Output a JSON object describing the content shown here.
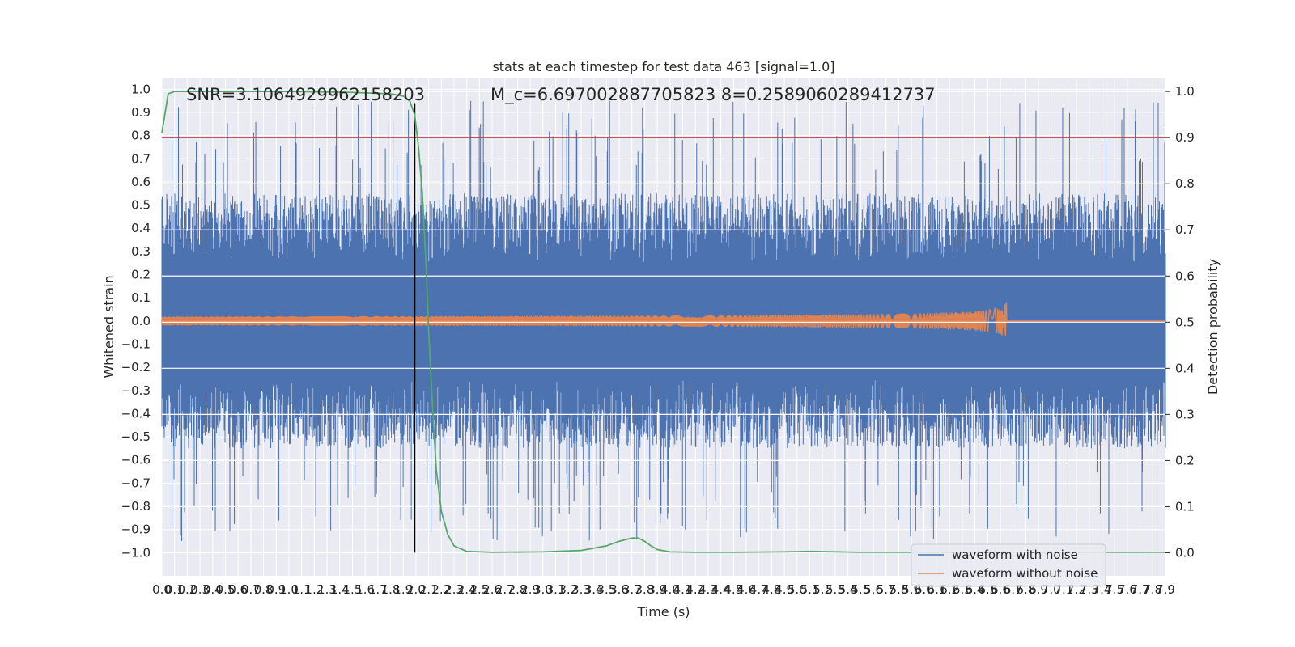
{
  "chart_data": {
    "type": "line",
    "title": "stats at each timestep for test data 463 [signal=1.0]",
    "xlabel": "Time (s)",
    "ylabel_left": "Whitened strain",
    "ylabel_right": "Detection probability",
    "xlim": [
      0,
      7.9
    ],
    "ylim_left": [
      -1.1,
      1.05
    ],
    "ylim_right": [
      -0.05,
      1.03
    ],
    "grid": true,
    "legend_position": "lower-right",
    "x_ticks": [
      "0.0",
      "0.1",
      "0.2",
      "0.3",
      "0.4",
      "0.5",
      "0.6",
      "0.7",
      "0.8",
      "0.9",
      "1.0",
      "1.1",
      "1.2",
      "1.3",
      "1.4",
      "1.5",
      "1.6",
      "1.7",
      "1.8",
      "1.9",
      "2.0",
      "2.1",
      "2.2",
      "2.3",
      "2.4",
      "2.5",
      "2.6",
      "2.7",
      "2.8",
      "2.9",
      "3.0",
      "3.1",
      "3.2",
      "3.3",
      "3.4",
      "3.5",
      "3.6",
      "3.7",
      "3.8",
      "3.9",
      "4.0",
      "4.1",
      "4.2",
      "4.3",
      "4.4",
      "4.5",
      "4.6",
      "4.7",
      "4.8",
      "4.9",
      "5.0",
      "5.1",
      "5.2",
      "5.3",
      "5.4",
      "5.5",
      "5.6",
      "5.7",
      "5.8",
      "5.9",
      "6.0",
      "6.1",
      "6.2",
      "6.3",
      "6.4",
      "6.5",
      "6.6",
      "6.7",
      "6.8",
      "6.9",
      "7.0",
      "7.1",
      "7.2",
      "7.3",
      "7.4",
      "7.5",
      "7.6",
      "7.7",
      "7.8",
      "7.9"
    ],
    "y_ticks_left": [
      "1.0",
      "0.9",
      "0.8",
      "0.7",
      "0.6",
      "0.5",
      "0.4",
      "0.3",
      "0.2",
      "0.1",
      "0.0",
      "−0.1",
      "−0.2",
      "−0.3",
      "−0.4",
      "−0.5",
      "−0.6",
      "−0.7",
      "−0.8",
      "−0.9",
      "−1.0"
    ],
    "y_ticks_right": [
      "1.0",
      "0.9",
      "0.8",
      "0.7",
      "0.6",
      "0.5",
      "0.4",
      "0.3",
      "0.2",
      "0.1",
      "0.0"
    ],
    "annotations": {
      "snr": "SNR=3.1064929962158203",
      "mc_overlap": "M_c=6.697002887705823 8=0.2589060289412737"
    },
    "series": [
      {
        "name": "waveform with noise",
        "color": "#4c72b0",
        "axis": "left",
        "description": "noisy whitened strain, roughly zero-mean with envelope about ±0.55 and spikes to ±0.95",
        "envelope": 0.55,
        "seed": 463
      },
      {
        "name": "waveform without noise",
        "color": "#dd8452",
        "axis": "left",
        "description": "chirp waveform growing in amplitude, merger at about 6.65 s",
        "merger_time": 6.65,
        "peak_amplitude": 0.09
      },
      {
        "color": "#55a868",
        "axis": "right",
        "x": [
          0.0,
          0.05,
          0.1,
          0.2,
          0.5,
          1.0,
          1.5,
          1.8,
          1.9,
          1.95,
          1.99,
          2.02,
          2.05,
          2.08,
          2.1,
          2.13,
          2.16,
          2.2,
          2.25,
          2.3,
          2.4,
          2.6,
          3.0,
          3.3,
          3.5,
          3.6,
          3.7,
          3.75,
          3.8,
          3.85,
          3.9,
          4.0,
          4.2,
          4.5,
          4.9,
          5.1,
          5.5,
          6.0,
          7.0,
          7.9
        ],
        "y": [
          0.91,
          0.995,
          1.0,
          1.0,
          1.0,
          1.0,
          0.998,
          0.995,
          0.99,
          0.98,
          0.95,
          0.88,
          0.78,
          0.62,
          0.48,
          0.32,
          0.18,
          0.09,
          0.04,
          0.015,
          0.003,
          0.001,
          0.002,
          0.005,
          0.015,
          0.025,
          0.032,
          0.032,
          0.025,
          0.015,
          0.007,
          0.002,
          0.001,
          0.001,
          0.002,
          0.003,
          0.001,
          0.001,
          0.001,
          0.001
        ]
      },
      {
        "color": "#c44e52",
        "axis": "right",
        "type": "threshold",
        "value": 0.9
      },
      {
        "color": "#000000",
        "axis": "left",
        "type": "vertical-line",
        "x": 1.99,
        "y_range": [
          -1.0,
          0.94
        ]
      }
    ],
    "legend": [
      {
        "label": "waveform with noise",
        "color": "#4c72b0"
      },
      {
        "label": "waveform without noise",
        "color": "#dd8452"
      }
    ]
  }
}
